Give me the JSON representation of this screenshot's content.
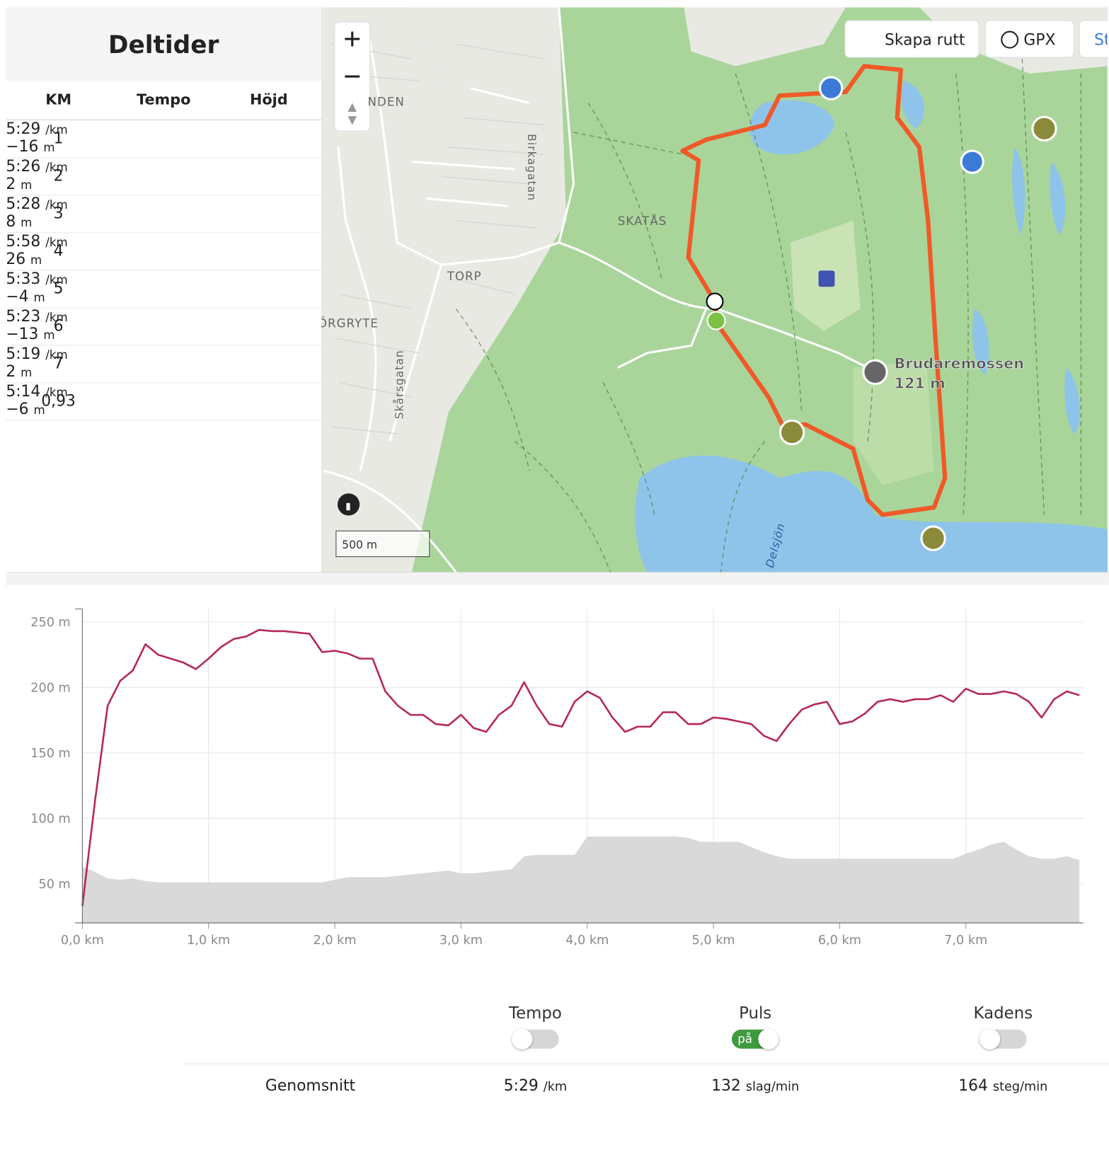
{
  "splits": {
    "title": "Deltider",
    "headers": [
      "KM",
      "Tempo",
      "Höjd"
    ],
    "rows": [
      {
        "km": "1",
        "tempo": "5:29",
        "tempo_unit": "/km",
        "height": "−16",
        "height_unit": "m"
      },
      {
        "km": "2",
        "tempo": "5:26",
        "tempo_unit": "/km",
        "height": "2",
        "height_unit": "m"
      },
      {
        "km": "3",
        "tempo": "5:28",
        "tempo_unit": "/km",
        "height": "8",
        "height_unit": "m"
      },
      {
        "km": "4",
        "tempo": "5:58",
        "tempo_unit": "/km",
        "height": "26",
        "height_unit": "m"
      },
      {
        "km": "5",
        "tempo": "5:33",
        "tempo_unit": "/km",
        "height": "−4",
        "height_unit": "m"
      },
      {
        "km": "6",
        "tempo": "5:23",
        "tempo_unit": "/km",
        "height": "−13",
        "height_unit": "m"
      },
      {
        "km": "7",
        "tempo": "5:19",
        "tempo_unit": "/km",
        "height": "2",
        "height_unit": "m"
      },
      {
        "km": "0,93",
        "tempo": "5:14",
        "tempo_unit": "/km",
        "height": "−6",
        "height_unit": "m"
      }
    ]
  },
  "map": {
    "buttons": [
      "Skapa rutt",
      "GPX",
      "St"
    ],
    "labels": [
      "NDEN",
      "Birkagatan",
      "SKATÅS",
      "TORP",
      "ÖRGRYTE",
      "Skårsgatan",
      "Stora Delsjön"
    ],
    "peak": {
      "name": "Brudaremossen",
      "elevation": "121 m"
    },
    "scale": "500 m"
  },
  "chart_data": {
    "type": "line",
    "x": [
      0,
      0.1,
      0.2,
      0.3,
      0.4,
      0.5,
      0.6,
      0.7,
      0.8,
      0.9,
      1.0,
      1.1,
      1.2,
      1.3,
      1.4,
      1.5,
      1.6,
      1.7,
      1.8,
      1.9,
      2.0,
      2.1,
      2.2,
      2.3,
      2.4,
      2.5,
      2.6,
      2.7,
      2.8,
      2.9,
      3.0,
      3.1,
      3.2,
      3.3,
      3.4,
      3.5,
      3.6,
      3.7,
      3.8,
      3.9,
      4.0,
      4.1,
      4.2,
      4.3,
      4.4,
      4.5,
      4.6,
      4.7,
      4.8,
      4.9,
      5.0,
      5.1,
      5.2,
      5.3,
      5.4,
      5.5,
      5.6,
      5.7,
      5.8,
      5.9,
      6.0,
      6.1,
      6.2,
      6.3,
      6.4,
      6.5,
      6.6,
      6.7,
      6.8,
      6.9,
      7.0,
      7.1,
      7.2,
      7.3,
      7.4,
      7.5,
      7.6,
      7.7,
      7.8,
      7.9
    ],
    "series": [
      {
        "type": "area",
        "color": "#d9d9d9",
        "values": [
          63,
          59,
          54,
          53,
          54,
          52,
          51,
          51,
          51,
          51,
          51,
          51,
          51,
          51,
          51,
          51,
          51,
          51,
          51,
          51,
          53,
          55,
          55,
          55,
          55,
          56,
          57,
          58,
          59,
          60,
          58,
          58,
          59,
          60,
          61,
          71,
          72,
          72,
          72,
          72,
          86,
          86,
          86,
          86,
          86,
          86,
          86,
          86,
          85,
          82,
          82,
          82,
          82,
          78,
          74,
          71,
          69,
          69,
          69,
          69,
          69,
          69,
          69,
          69,
          69,
          69,
          69,
          69,
          69,
          69,
          73,
          76,
          80,
          82,
          76,
          71,
          69,
          69,
          71,
          68
        ]
      },
      {
        "type": "line",
        "color": "#b5285a",
        "values": [
          33,
          113,
          186,
          205,
          213,
          233,
          225,
          222,
          219,
          214,
          222,
          231,
          237,
          239,
          244,
          243,
          243,
          242,
          241,
          227,
          228,
          226,
          222,
          222,
          197,
          186,
          179,
          179,
          172,
          171,
          179,
          169,
          166,
          179,
          186,
          204,
          186,
          172,
          170,
          189,
          197,
          192,
          177,
          166,
          170,
          170,
          181,
          181,
          172,
          172,
          177,
          176,
          174,
          172,
          163,
          159,
          172,
          183,
          187,
          189,
          172,
          174,
          180,
          189,
          191,
          189,
          191,
          191,
          194,
          189,
          199,
          195,
          195,
          197,
          195,
          189,
          177,
          191,
          197,
          194
        ]
      }
    ],
    "xlim": [
      0,
      7.93
    ],
    "ylim": [
      20,
      260
    ],
    "xticks": [
      {
        "value": 0,
        "label": "0,0 km"
      },
      {
        "value": 1,
        "label": "1,0 km"
      },
      {
        "value": 2,
        "label": "2,0 km"
      },
      {
        "value": 3,
        "label": "3,0 km"
      },
      {
        "value": 4,
        "label": "4,0 km"
      },
      {
        "value": 5,
        "label": "5,0 km"
      },
      {
        "value": 6,
        "label": "6,0 km"
      },
      {
        "value": 7,
        "label": "7,0 km"
      }
    ],
    "yticks": [
      {
        "value": 50,
        "label": "50 m"
      },
      {
        "value": 100,
        "label": "100 m"
      },
      {
        "value": 150,
        "label": "150 m"
      },
      {
        "value": 200,
        "label": "200 m"
      },
      {
        "value": 250,
        "label": "250 m"
      }
    ],
    "grid": true
  },
  "toggles": [
    {
      "label": "Tempo",
      "on": false
    },
    {
      "label": "Puls",
      "on": true,
      "state_label": "på"
    },
    {
      "label": "Kadens",
      "on": false
    }
  ],
  "averages": {
    "label": "Genomsnitt",
    "items": [
      {
        "value": "5:29",
        "unit": "/km"
      },
      {
        "value": "132",
        "unit": "slag/min"
      },
      {
        "value": "164",
        "unit": "steg/min"
      }
    ]
  }
}
